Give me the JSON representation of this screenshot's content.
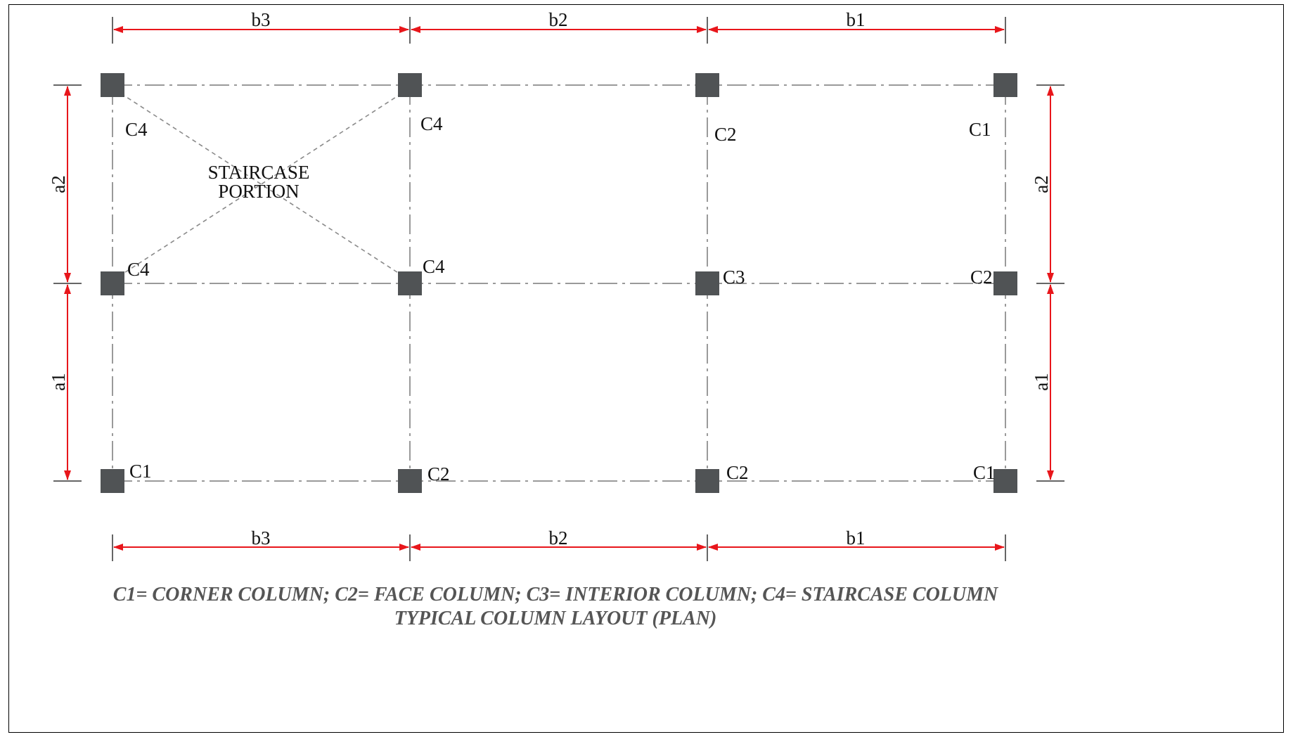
{
  "plan": {
    "staircase_label_line1": "STAIRCASE",
    "staircase_label_line2": "PORTION",
    "columns": [
      {
        "label": "C4"
      },
      {
        "label": "C4"
      },
      {
        "label": "C2"
      },
      {
        "label": "C1"
      },
      {
        "label": "C4"
      },
      {
        "label": "C4"
      },
      {
        "label": "C3"
      },
      {
        "label": "C2"
      },
      {
        "label": "C1"
      },
      {
        "label": "C2"
      },
      {
        "label": "C2"
      },
      {
        "label": "C1"
      }
    ],
    "dimensions": {
      "top": [
        "b3",
        "b2",
        "b1"
      ],
      "bottom": [
        "b3",
        "b2",
        "b1"
      ],
      "left": [
        "a2",
        "a1"
      ],
      "right": [
        "a2",
        "a1"
      ]
    },
    "legend": "C1= CORNER COLUMN; C2= FACE COLUMN; C3= INTERIOR COLUMN; C4= STAIRCASE COLUMN",
    "title": "TYPICAL COLUMN LAYOUT (PLAN)"
  },
  "colors": {
    "dimension": "#e8161b",
    "column": "#505355",
    "grid": "#9a9a9a",
    "caption": "#555555"
  }
}
